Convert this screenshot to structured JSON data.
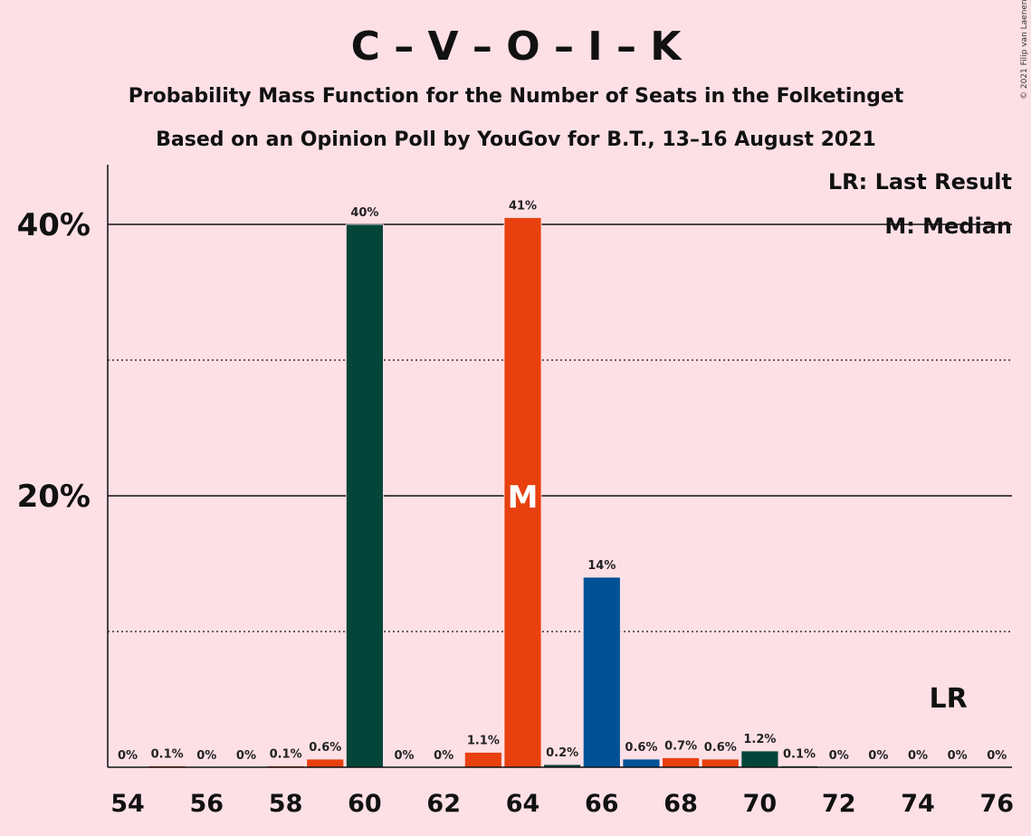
{
  "chart_data": {
    "type": "bar",
    "title": "C – V – O – I – K",
    "subtitle": "Probability Mass Function for the Number of Seats in the Folketinget",
    "subtitle2": "Based on an Opinion Poll by YouGov for B.T., 13–16 August 2021",
    "copyright": "© 2021 Filip van Laenen",
    "legend": {
      "last_result": "LR: Last Result",
      "median": "M: Median",
      "placement": "top-right"
    },
    "ylim": [
      0,
      44
    ],
    "y_ticks": [
      {
        "value": 20,
        "label": "20%"
      },
      {
        "value": 40,
        "label": "40%"
      }
    ],
    "y_dotted_gridlines": [
      10,
      30
    ],
    "x_tick_labels": [
      "54",
      "56",
      "58",
      "60",
      "62",
      "64",
      "66",
      "68",
      "70",
      "72",
      "74",
      "76"
    ],
    "bars": [
      {
        "seats": 54,
        "value": 0.0,
        "label": "0%",
        "color": "#E8410F"
      },
      {
        "seats": 55,
        "value": 0.1,
        "label": "0.1%",
        "color": "#E8410F"
      },
      {
        "seats": 56,
        "value": 0.0,
        "label": "0%",
        "color": "#E8410F"
      },
      {
        "seats": 57,
        "value": 0.0,
        "label": "0%",
        "color": "#E8410F"
      },
      {
        "seats": 58,
        "value": 0.1,
        "label": "0.1%",
        "color": "#E8410F"
      },
      {
        "seats": 59,
        "value": 0.6,
        "label": "0.6%",
        "color": "#E8410F"
      },
      {
        "seats": 60,
        "value": 40.0,
        "label": "40%",
        "color": "#04453A"
      },
      {
        "seats": 61,
        "value": 0.0,
        "label": "0%",
        "color": "#E8410F"
      },
      {
        "seats": 62,
        "value": 0.0,
        "label": "0%",
        "color": "#E8410F"
      },
      {
        "seats": 63,
        "value": 1.1,
        "label": "1.1%",
        "color": "#E8410F"
      },
      {
        "seats": 64,
        "value": 40.5,
        "label": "41%",
        "color": "#E8410F"
      },
      {
        "seats": 65,
        "value": 0.2,
        "label": "0.2%",
        "color": "#04453A"
      },
      {
        "seats": 66,
        "value": 14.0,
        "label": "14%",
        "color": "#005196"
      },
      {
        "seats": 67,
        "value": 0.6,
        "label": "0.6%",
        "color": "#005196"
      },
      {
        "seats": 68,
        "value": 0.7,
        "label": "0.7%",
        "color": "#E8410F"
      },
      {
        "seats": 69,
        "value": 0.6,
        "label": "0.6%",
        "color": "#E8410F"
      },
      {
        "seats": 70,
        "value": 1.2,
        "label": "1.2%",
        "color": "#04453A"
      },
      {
        "seats": 71,
        "value": 0.1,
        "label": "0.1%",
        "color": "#04453A"
      },
      {
        "seats": 72,
        "value": 0.0,
        "label": "0%",
        "color": "#04453A"
      },
      {
        "seats": 73,
        "value": 0.0,
        "label": "0%",
        "color": "#04453A"
      },
      {
        "seats": 74,
        "value": 0.0,
        "label": "0%",
        "color": "#04453A"
      },
      {
        "seats": 75,
        "value": 0.0,
        "label": "0%",
        "color": "#04453A"
      },
      {
        "seats": 76,
        "value": 0.0,
        "label": "0%",
        "color": "#04453A"
      }
    ],
    "median": {
      "seats": 64,
      "label": "M"
    },
    "last_result": {
      "seats": 75,
      "label": "LR"
    },
    "grid": true
  },
  "colors": {
    "background": "#FDE0E6",
    "axis": "#111111",
    "grid_solid": "#111111",
    "grid_dotted": "#111111"
  }
}
